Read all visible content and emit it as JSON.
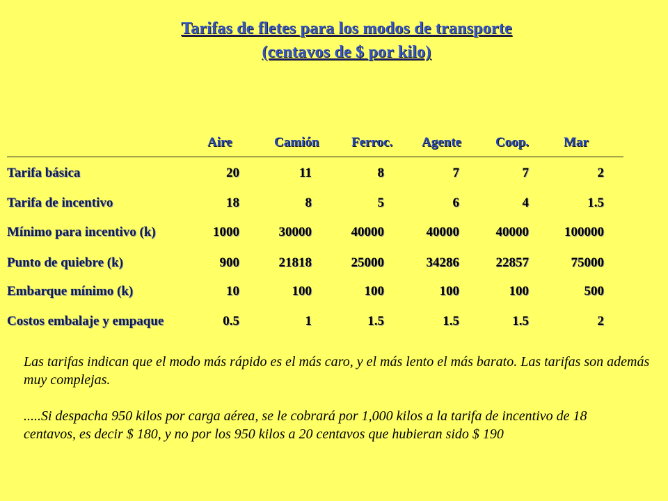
{
  "title": {
    "line1": "Tarifas de fletes para los modos de transporte",
    "line2": "(centavos de $ por kilo)"
  },
  "table": {
    "columns": [
      "Aire",
      "Camión",
      "Ferroc.",
      "Agente",
      "Coop.",
      "Mar"
    ],
    "rows": [
      {
        "label": "Tarifa básica",
        "values": [
          "20",
          "11",
          "8",
          "7",
          "7",
          "2"
        ]
      },
      {
        "label": "Tarifa de incentivo",
        "values": [
          "18",
          "8",
          "5",
          "6",
          "4",
          "1.5"
        ]
      },
      {
        "label": "Mínimo para incentivo (k)",
        "values": [
          "1000",
          "30000",
          "40000",
          "40000",
          "40000",
          "100000"
        ]
      },
      {
        "label": "Punto de quiebre (k)",
        "values": [
          "900",
          "21818",
          "25000",
          "34286",
          "22857",
          "75000"
        ]
      },
      {
        "label": "Embarque mínimo (k)",
        "values": [
          "10",
          "100",
          "100",
          "100",
          "100",
          "500"
        ]
      },
      {
        "label": "Costos embalaje y empaque",
        "values": [
          "0.5",
          "1",
          "1.5",
          "1.5",
          "1.5",
          "2"
        ]
      }
    ]
  },
  "notes": {
    "p1": "Las tarifas  indican que el modo más rápido es el más caro, y el más lento el más barato. Las tarifas son además muy complejas.",
    "p2": ".....Si despacha 950 kilos por carga aérea, se le cobrará  por 1,000 kilos a la tarifa de incentivo de  18 centavos, es decir $ 180, y no por los 950 kilos a 20 centavos que  hubieran sido $ 190"
  }
}
